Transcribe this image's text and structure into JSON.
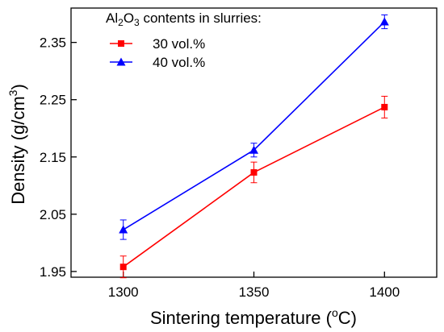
{
  "chart_data": {
    "type": "line",
    "title": "",
    "xlabel": "Sintering temperature (",
    "xlabel_sup": "o",
    "xlabel_tail": "C)",
    "ylabel": "Density (g/cm",
    "ylabel_sup": "3",
    "ylabel_tail": ")",
    "x": [
      1300,
      1350,
      1400
    ],
    "xlim": [
      1280,
      1420
    ],
    "ylim": [
      1.94,
      2.41
    ],
    "x_ticks": [
      1300,
      1350,
      1400
    ],
    "x_tick_labels": [
      "1300",
      "1350",
      "1400"
    ],
    "y_ticks": [
      1.95,
      2.05,
      2.15,
      2.25,
      2.35
    ],
    "y_tick_labels": [
      "1.95",
      "2.05",
      "2.15",
      "2.25",
      "2.35"
    ],
    "grid": false,
    "legend": {
      "title_parts": [
        "Al",
        "2",
        "O",
        "3",
        " contents in slurries:"
      ],
      "placement": "top-left"
    },
    "series": [
      {
        "name": "30 vol.%",
        "color": "#ff0000",
        "marker": "square",
        "values": [
          1.958,
          2.123,
          2.237
        ],
        "errors": [
          0.019,
          0.018,
          0.019
        ]
      },
      {
        "name": "40 vol.%",
        "color": "#0000ff",
        "marker": "triangle",
        "values": [
          2.023,
          2.162,
          2.386
        ],
        "errors": [
          0.017,
          0.012,
          0.012
        ]
      }
    ]
  }
}
